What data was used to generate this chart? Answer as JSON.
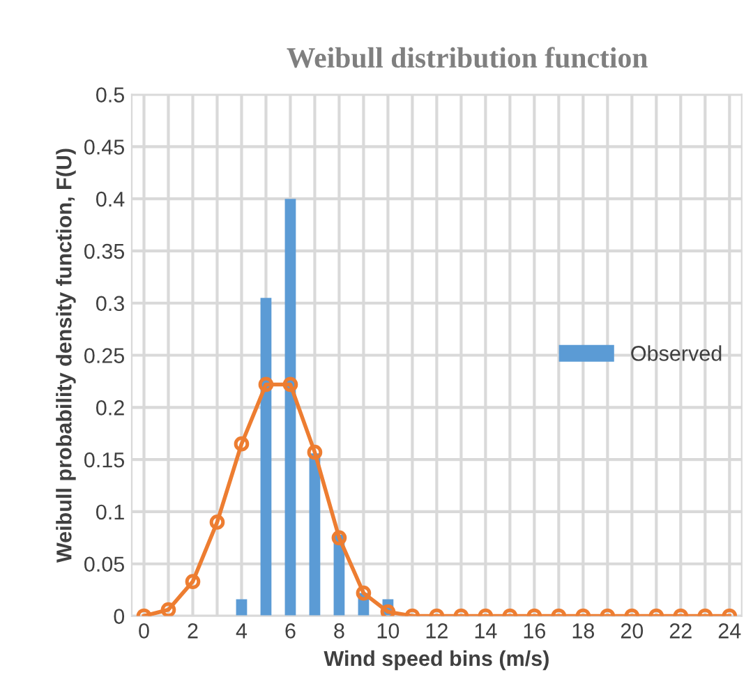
{
  "chart_data": {
    "type": "bar",
    "title": "Weibull distribution function",
    "xlabel": "Wind speed bins (m/s)",
    "ylabel": "Weibull probability density function, F(U)",
    "categories": [
      "0",
      null,
      "2",
      null,
      "4",
      null,
      "6",
      null,
      "8",
      null,
      "10",
      null,
      "12",
      null,
      "14",
      null,
      "16",
      null,
      "18",
      null,
      "20",
      null,
      "22",
      null,
      "24"
    ],
    "series": [
      {
        "name": "Observed",
        "color": "#5b9bd5",
        "values": [
          0,
          0,
          0,
          0,
          0.016,
          0.305,
          0.4,
          0.156,
          0.078,
          0.022,
          0.016,
          0,
          0,
          0,
          0,
          0,
          0,
          0,
          0,
          0,
          0,
          0,
          0,
          0,
          0
        ]
      },
      {
        "type": "line",
        "color": "#ed7d31",
        "marker": "circle",
        "values": [
          0,
          0.006,
          0.033,
          0.09,
          0.165,
          0.222,
          0.222,
          0.157,
          0.075,
          0.022,
          0.004,
          0,
          0,
          0,
          0,
          0,
          0,
          0,
          0,
          0,
          0,
          0,
          0,
          0,
          0
        ]
      }
    ],
    "ylim": [
      0,
      0.5
    ],
    "yticks": [
      0,
      0.05,
      0.1,
      0.15,
      0.2,
      0.25,
      0.3,
      0.35,
      0.4,
      0.45,
      0.5
    ],
    "grid": true,
    "legend": "right"
  }
}
